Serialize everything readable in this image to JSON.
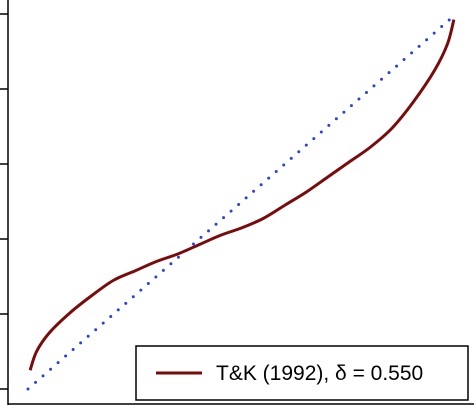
{
  "chart_data": {
    "type": "line",
    "xlim": [
      0,
      1
    ],
    "ylim": [
      0,
      1
    ],
    "grid": false,
    "legend_position": "bottom-right",
    "series": [
      {
        "name": "T&K (1992), δ = 0.550",
        "color": "#7b0a0a",
        "style": "solid",
        "x": [
          0.005,
          0.02,
          0.05,
          0.1,
          0.15,
          0.2,
          0.25,
          0.3,
          0.35,
          0.4,
          0.45,
          0.5,
          0.55,
          0.6,
          0.65,
          0.7,
          0.75,
          0.8,
          0.85,
          0.9,
          0.95,
          0.98,
          0.995
        ],
        "y": [
          0.05,
          0.1,
          0.15,
          0.205,
          0.25,
          0.29,
          0.315,
          0.34,
          0.36,
          0.385,
          0.41,
          0.43,
          0.455,
          0.49,
          0.525,
          0.565,
          0.605,
          0.645,
          0.695,
          0.765,
          0.85,
          0.92,
          0.985
        ]
      },
      {
        "name": "",
        "color": "#2a40e0",
        "style": "dotted",
        "x": [
          0,
          1
        ],
        "y": [
          0,
          1
        ]
      }
    ],
    "legend_entries": [
      "T&K (1992), δ = 0.550"
    ]
  }
}
